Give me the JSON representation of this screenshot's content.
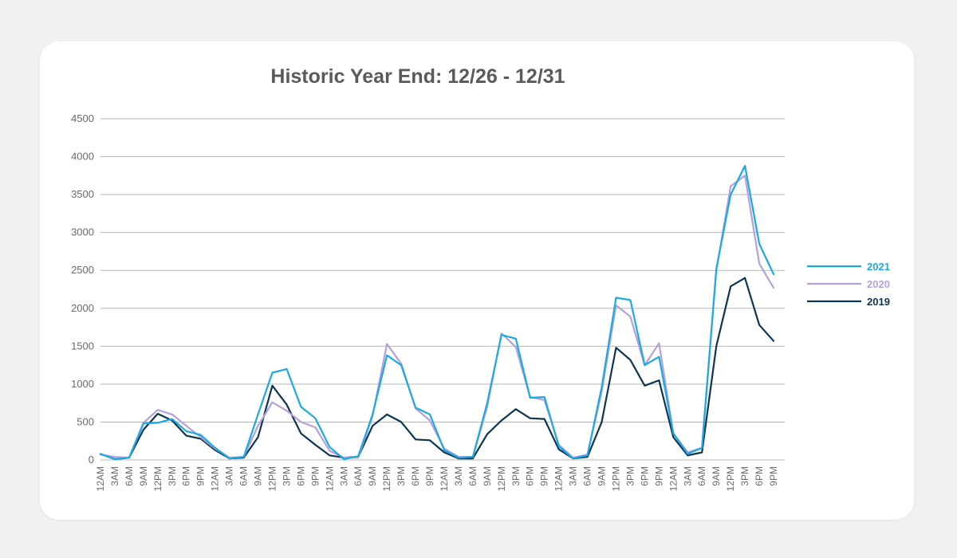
{
  "chart_data": {
    "type": "line",
    "title": "Historic Year End: 12/26 - 12/31",
    "xlabel": "",
    "ylabel": "",
    "ylim": [
      0,
      4500
    ],
    "yticks": [
      0,
      500,
      1000,
      1500,
      2000,
      2500,
      3000,
      3500,
      4000,
      4500
    ],
    "grid": true,
    "legend_position": "right",
    "x": [
      "12AM",
      "3AM",
      "6AM",
      "9AM",
      "12PM",
      "3PM",
      "6PM",
      "9PM",
      "12AM",
      "3AM",
      "6AM",
      "9AM",
      "12PM",
      "3PM",
      "6PM",
      "9PM",
      "12AM",
      "3AM",
      "6AM",
      "9AM",
      "12PM",
      "3PM",
      "6PM",
      "9PM",
      "12AM",
      "3AM",
      "6AM",
      "9AM",
      "12PM",
      "3PM",
      "6PM",
      "9PM",
      "12AM",
      "3AM",
      "6AM",
      "9AM",
      "12PM",
      "3PM",
      "6PM",
      "9PM",
      "12AM",
      "3AM",
      "6AM",
      "9AM",
      "12PM",
      "3PM",
      "6PM",
      "9PM"
    ],
    "series": [
      {
        "name": "2021",
        "color": "#1ba9e4",
        "values": [
          80,
          10,
          30,
          480,
          490,
          540,
          380,
          330,
          160,
          20,
          40,
          600,
          1150,
          1200,
          700,
          550,
          170,
          10,
          50,
          600,
          1380,
          1250,
          690,
          600,
          130,
          30,
          40,
          750,
          1650,
          1600,
          820,
          830,
          180,
          20,
          60,
          960,
          2140,
          2110,
          1250,
          1360,
          350,
          80,
          160,
          2520,
          3500,
          3880,
          2850,
          2450
        ]
      },
      {
        "name": "2020",
        "color": "#b3a0dd",
        "values": [
          70,
          40,
          30,
          490,
          660,
          600,
          450,
          300,
          150,
          30,
          40,
          450,
          760,
          650,
          500,
          430,
          120,
          30,
          30,
          580,
          1530,
          1270,
          680,
          520,
          150,
          40,
          40,
          700,
          1670,
          1490,
          830,
          790,
          200,
          30,
          70,
          900,
          2040,
          1890,
          1250,
          1540,
          350,
          100,
          160,
          2500,
          3610,
          3750,
          2590,
          2270
        ]
      },
      {
        "name": "2019",
        "color": "#0d3552",
        "values": [
          80,
          10,
          30,
          400,
          610,
          520,
          320,
          280,
          130,
          20,
          30,
          300,
          980,
          730,
          350,
          200,
          60,
          30,
          40,
          450,
          600,
          500,
          270,
          260,
          100,
          20,
          20,
          340,
          520,
          670,
          550,
          540,
          140,
          20,
          40,
          500,
          1480,
          1320,
          980,
          1050,
          300,
          60,
          100,
          1500,
          2290,
          2400,
          1780,
          1570
        ]
      }
    ]
  }
}
